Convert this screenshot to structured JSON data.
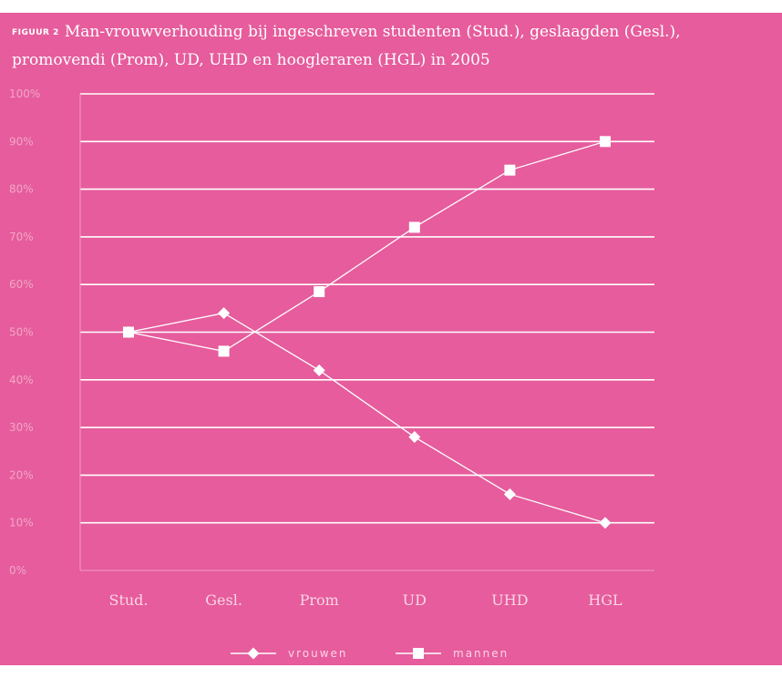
{
  "figure": {
    "label": "FIGUUR 2",
    "title": "Man-vrouwverhouding bij ingeschreven studenten (Stud.), geslaagden (Gesl.), promovendi (Prom), UD, UHD en hoogleraren (HGL) in 2005"
  },
  "colors": {
    "background": "#e65c9c",
    "lines": "#ffffff",
    "text": "#fbd5e6"
  },
  "chart_data": {
    "type": "line",
    "title": "Man-vrouwverhouding bij ingeschreven studenten (Stud.), geslaagden (Gesl.), promovendi (Prom), UD, UHD en hoogleraren (HGL) in 2005",
    "categories": [
      "Stud.",
      "Gesl.",
      "Prom",
      "UD",
      "UHD",
      "HGL"
    ],
    "ylim": [
      0,
      100
    ],
    "yticks": [
      "0%",
      "10%",
      "20%",
      "30%",
      "40%",
      "50%",
      "60%",
      "70%",
      "80%",
      "90%",
      "100%"
    ],
    "grid": true,
    "legend_position": "bottom",
    "series": [
      {
        "name": "vrouwen",
        "marker": "diamond",
        "values": [
          50,
          54,
          42,
          28,
          16,
          10
        ]
      },
      {
        "name": "mannen",
        "marker": "square",
        "values": [
          50,
          46,
          58.5,
          72,
          84,
          90
        ]
      }
    ]
  }
}
